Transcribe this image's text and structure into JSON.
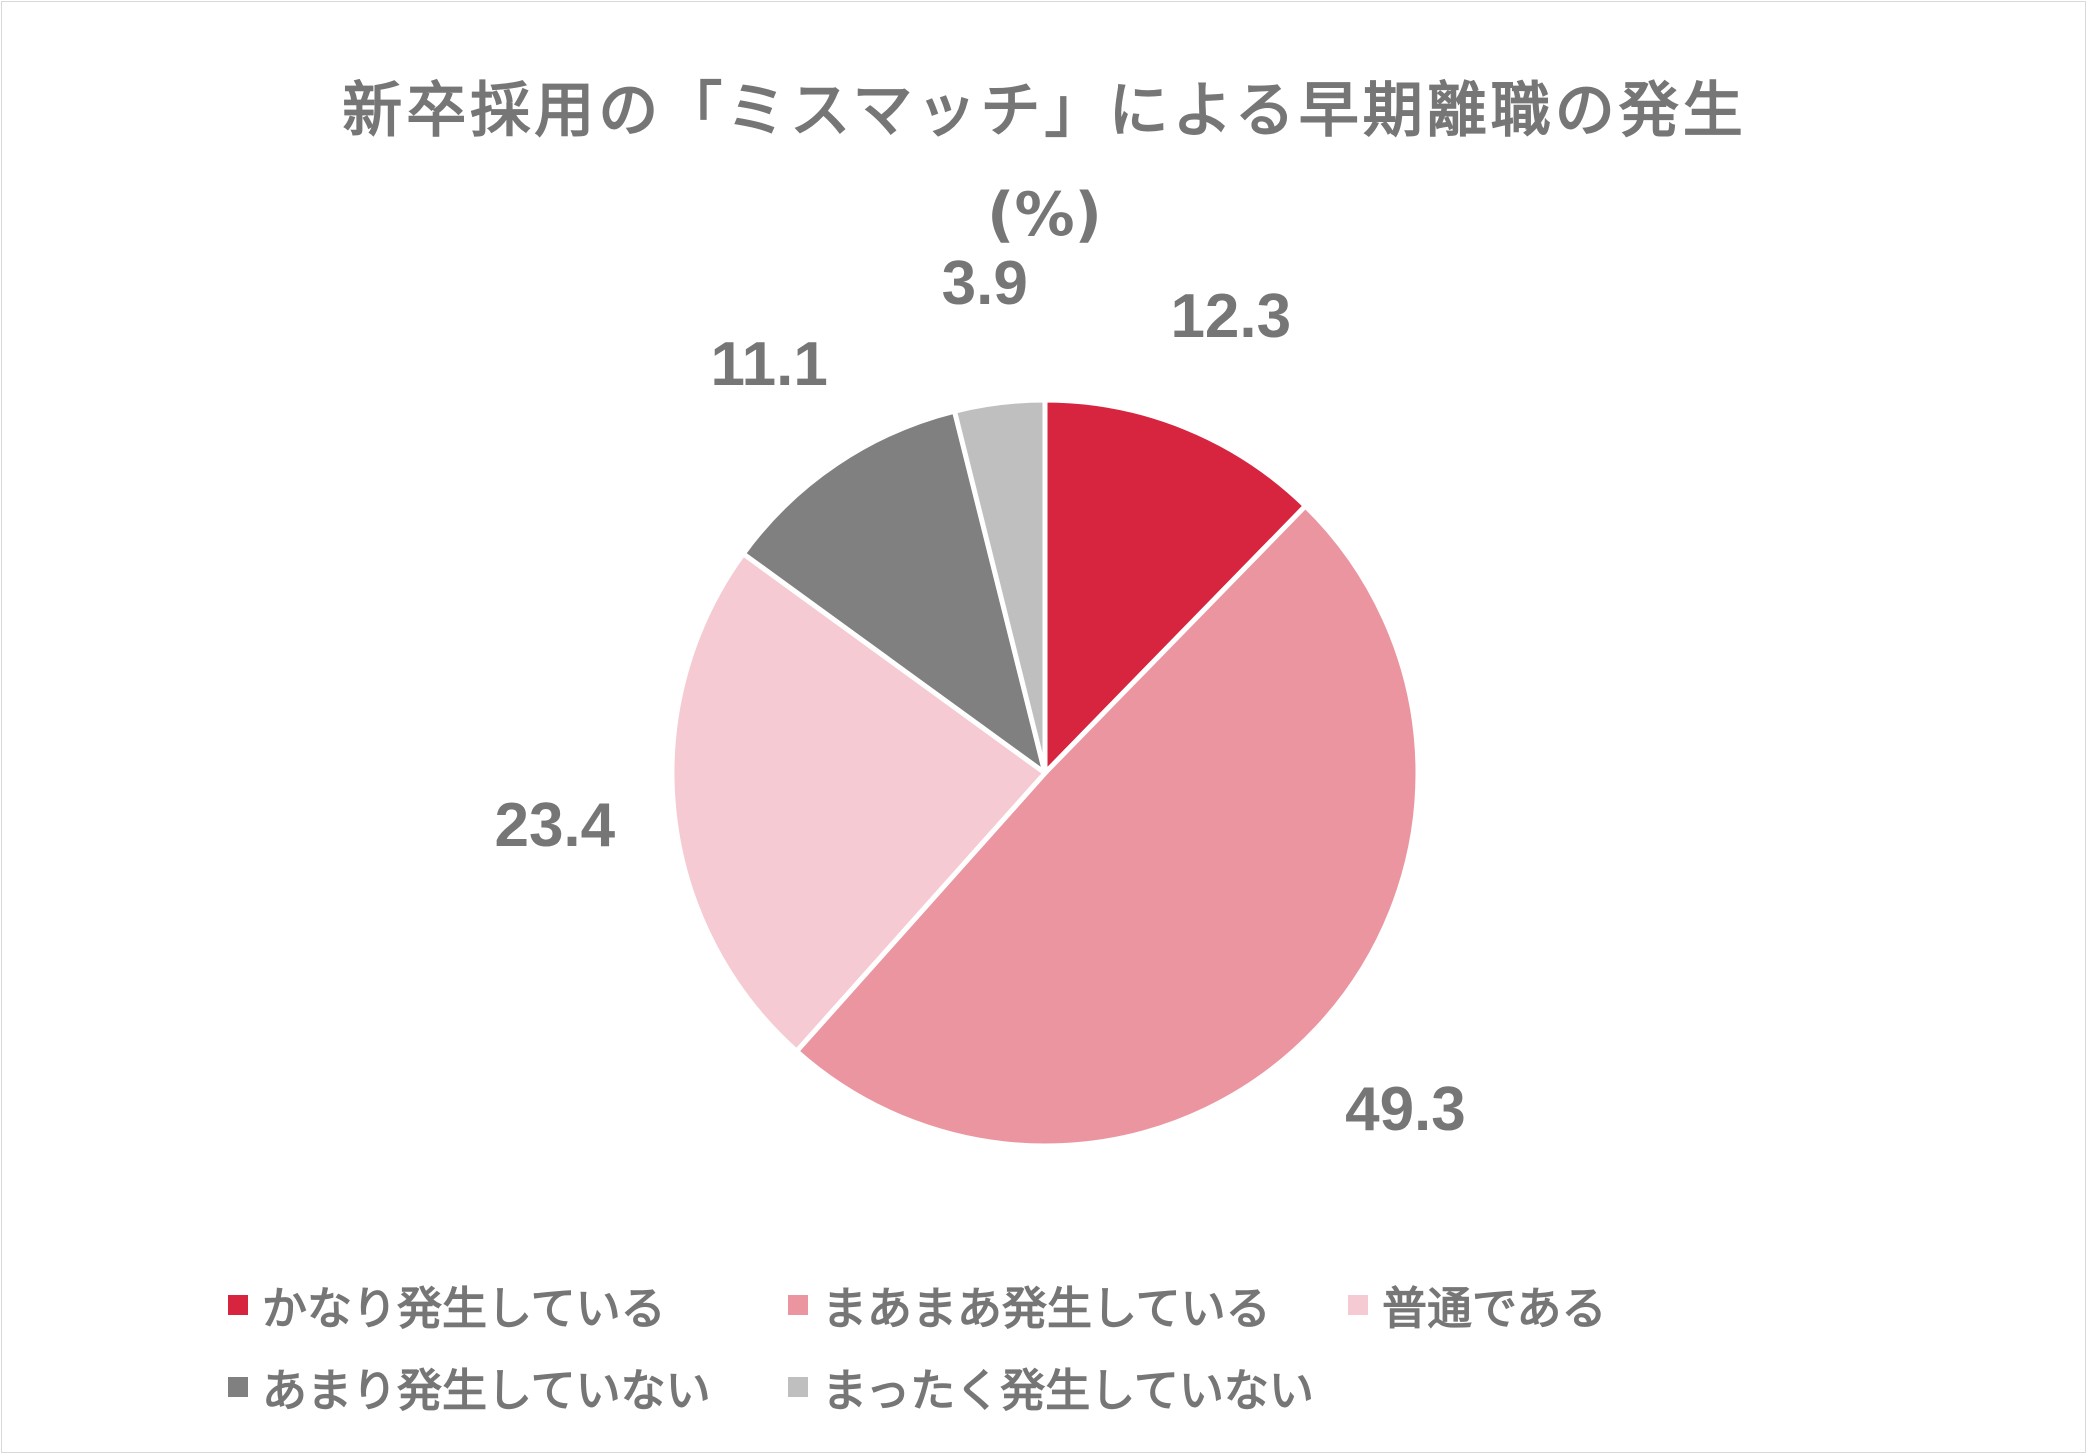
{
  "title": "新卒採用の「ミスマッチ」による早期離職の発生",
  "subtitle": "(%)",
  "chart_data": {
    "type": "pie",
    "start_angle": "12 o'clock",
    "direction": "clockwise",
    "slices": [
      {
        "label": "かなり発生している",
        "value": 12.3,
        "value_label": "12.3",
        "color": "#d7243f"
      },
      {
        "label": "まあまあ発生している",
        "value": 49.3,
        "value_label": "49.3",
        "color": "#eb95a0"
      },
      {
        "label": "普通である",
        "value": 23.4,
        "value_label": "23.4",
        "color": "#f5cad2"
      },
      {
        "label": "あまり発生していない",
        "value": 11.1,
        "value_label": "11.1",
        "color": "#808080"
      },
      {
        "label": "まったく発生していない",
        "value": 3.9,
        "value_label": "3.9",
        "color": "#bfbfbf"
      }
    ],
    "legend_position": "bottom",
    "slice_border_color": "#ffffff"
  }
}
